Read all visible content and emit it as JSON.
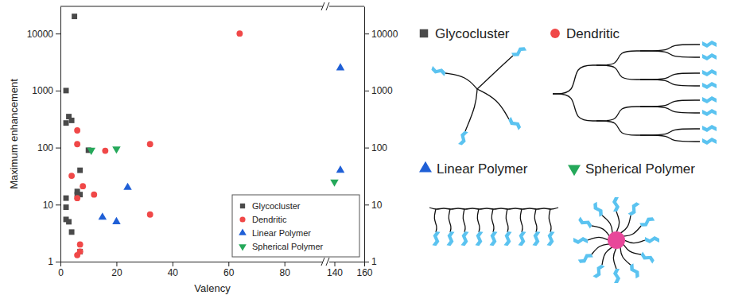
{
  "chart_data": {
    "type": "scatter",
    "x_label": "Valency",
    "y_label": "Maximum enhancement",
    "xlim": [
      [
        0,
        94
      ],
      [
        136,
        160
      ]
    ],
    "xticks": [
      0,
      20,
      40,
      60,
      80,
      140,
      160
    ],
    "ylim": [
      1,
      30000
    ],
    "yticks": [
      1,
      10,
      100,
      1000,
      10000
    ],
    "log": "y",
    "legend": "lower right",
    "series": [
      {
        "name": "Glycocluster",
        "color": "#4a4a4a",
        "marker": "square",
        "x": [
          2,
          2,
          2,
          2,
          2,
          3,
          3,
          4,
          4,
          5,
          6,
          6,
          7,
          7,
          7,
          10
        ],
        "values": [
          1000,
          270,
          13,
          9,
          5.5,
          5,
          350,
          300,
          3.3,
          20000,
          17,
          15,
          40,
          15,
          1.5,
          90
        ]
      },
      {
        "name": "Dendritic",
        "color": "#f04848",
        "marker": "circle",
        "x": [
          4,
          6,
          6,
          6,
          6,
          7,
          7,
          8,
          12,
          16,
          32,
          32,
          64
        ],
        "values": [
          32,
          200,
          115,
          13,
          1.3,
          2,
          1.5,
          21,
          15,
          88,
          115,
          6.7,
          10000
        ]
      },
      {
        "name": "Linear Polymer",
        "color": "#1f5fd6",
        "marker": "triangle",
        "x": [
          15,
          20,
          24,
          144,
          144
        ],
        "values": [
          6,
          5,
          20,
          2500,
          40
        ]
      },
      {
        "name": "Spherical Polymer",
        "color": "#25a85a",
        "marker": "triangle-down",
        "x": [
          11,
          20,
          140
        ],
        "values": [
          90,
          95,
          25
        ]
      }
    ]
  }
}
